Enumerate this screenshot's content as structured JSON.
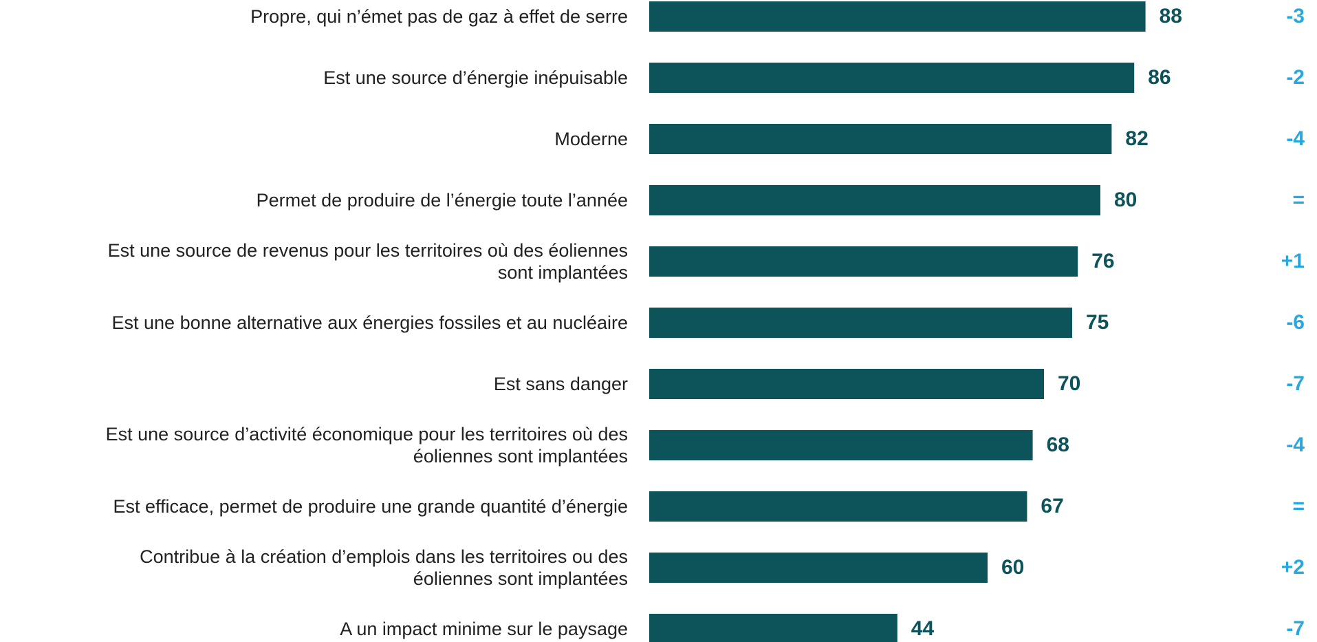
{
  "chart_data": {
    "type": "bar",
    "orientation": "horizontal",
    "categories": [
      "Propre, qui n’émet pas de gaz à effet de serre",
      "Est une source d’énergie inépuisable",
      "Moderne",
      "Permet de produire de l’énergie toute l’année",
      "Est une source de revenus pour les territoires où des éoliennes\nsont implantées",
      "Est une bonne alternative aux énergies fossiles et au nucléaire",
      "Est sans danger",
      "Est une source d’activité économique pour les territoires où des\néoliennes sont implantées",
      "Est efficace, permet de produire une grande quantité d’énergie",
      "Contribue à la création d’emplois dans les territoires ou des\néoliennes sont implantées",
      "A un impact minime sur le paysage"
    ],
    "values": [
      88,
      86,
      82,
      80,
      76,
      75,
      70,
      68,
      67,
      60,
      44
    ],
    "changes": [
      "-3",
      "-2",
      "-4",
      "=",
      "+1",
      "-6",
      "-7",
      "-4",
      "=",
      "+2",
      "-7"
    ],
    "color": "#0d535a",
    "change_color": "#29a8e0",
    "xlim": [
      0,
      100
    ]
  }
}
